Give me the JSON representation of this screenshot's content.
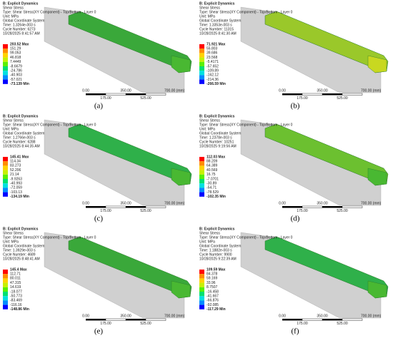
{
  "panels": [
    {
      "caption": "(a)",
      "header": [
        "B: Explicit Dynamics",
        "Shear Stress",
        "Type: Shear Stress(XY Component) - Top/Bottom - Layer 0",
        "Unit: MPa",
        "Global Coordinate System",
        "Time: 1.3264e-003 s",
        "Cycle Number: 6273",
        "10/28/2025 8:41:57 AM"
      ],
      "legend": [
        "203.52 Max",
        "151.29",
        "99.053",
        "46.818",
        "7.4449",
        "-8.6679",
        "-24.786",
        "-40.903",
        "-57.021",
        "-73.139 Min"
      ],
      "scale_top": [
        "0.00",
        "350.00",
        "700.00 (mm)"
      ],
      "scale_bottom": [
        "175.00",
        "525.00"
      ]
    },
    {
      "caption": "(b)",
      "header": [
        "B: Explicit Dynamics",
        "Shear Stress",
        "Type: Shear Stress(XY Component) - Top/Bottom - Layer 0",
        "Unit: MPa",
        "Global Coordinate System",
        "Time: 1.3353e-003 s",
        "Cycle Number: 11315",
        "10/28/2025 8:41:30 AM"
      ],
      "legend": [
        "71.921 Max",
        "55.803",
        "39.686",
        "23.568",
        "-5.4171",
        "-57.652",
        "-109.89",
        "-162.12",
        "-214.36",
        "-266.59 Min"
      ],
      "scale_top": [
        "0.00",
        "350.00",
        "700.00 (mm)"
      ],
      "scale_bottom": [
        "175.00",
        "525.00"
      ]
    },
    {
      "caption": "(c)",
      "header": [
        "B: Explicit Dynamics",
        "Shear Stress",
        "Type: Shear Stress(XY Component) - Top/Bottom - Layer 0",
        "Unit: MPa",
        "Global Coordinate System",
        "Time: 1.2766e-003 s",
        "Cycle Number: 6288",
        "10/28/2025 8:44:35 AM"
      ],
      "legend": [
        "145.41 Max",
        "114.34",
        "83.273",
        "52.206",
        "21.14",
        "-9.9263",
        "-40.993",
        "-72.059",
        "-103.13",
        "-134.19 Min"
      ],
      "scale_top": [
        "0.00",
        "350.00",
        "700.00 (mm)"
      ],
      "scale_bottom": [
        "175.00",
        "525.00"
      ]
    },
    {
      "caption": "(d)",
      "header": [
        "B: Explicit Dynamics",
        "Shear Stress",
        "Type: Shear Stress(XY Component) - Top/Bottom - Layer 0",
        "Unit: MPa",
        "Global Coordinate System",
        "Time: 1.2378e-003 s",
        "Cycle Number: 10251",
        "10/28/2025 9:19:56 AM"
      ],
      "legend": [
        "112.03 Max",
        "88.209",
        "64.389",
        "40.569",
        "16.75",
        "-7.0701",
        "-30.89",
        "-54.71",
        "-78.529",
        "-102.35 Min"
      ],
      "scale_top": [
        "0.00",
        "350.00",
        "700.00 (mm)"
      ],
      "scale_bottom": [
        "175.00",
        "525.00"
      ]
    },
    {
      "caption": "(e)",
      "header": [
        "B: Explicit Dynamics",
        "Shear Stress",
        "Type: Shear Stress(XY Component) - Top/Bottom - Layer 0",
        "Unit: MPa",
        "Global Coordinate System",
        "Time: 1.3929e-003 s",
        "Cycle Number: 4689",
        "10/28/2025 8:48:41 AM"
      ],
      "legend": [
        "145.4 Max",
        "112.71",
        "80.011",
        "47.315",
        "14.619",
        "-18.077",
        "-50.773",
        "-83.469",
        "-116.16",
        "-148.86 Min"
      ],
      "scale_top": [
        "0.00",
        "350.00",
        "700.00 (mm)"
      ],
      "scale_bottom": [
        "175.00",
        "525.00"
      ]
    },
    {
      "caption": "(f)",
      "header": [
        "B: Explicit Dynamics",
        "Shear Stress",
        "Type: Shear Stress(XY Component) - Top/Bottom - Layer 0",
        "Unit: MPa",
        "Global Coordinate System",
        "Time: 1.1882e-003 s",
        "Cycle Number: 9900",
        "10/28/2025 9:22:39 AM"
      ],
      "legend": [
        "109.59 Max",
        "84.378",
        "59.169",
        "33.96",
        "8.7507",
        "-16.458",
        "-41.667",
        "-66.876",
        "-92.085",
        "-117.29 Min"
      ],
      "scale_top": [
        "0.00",
        "350.00",
        "700.00 (mm)"
      ],
      "scale_bottom": [
        "175.00",
        "525.00"
      ]
    }
  ]
}
